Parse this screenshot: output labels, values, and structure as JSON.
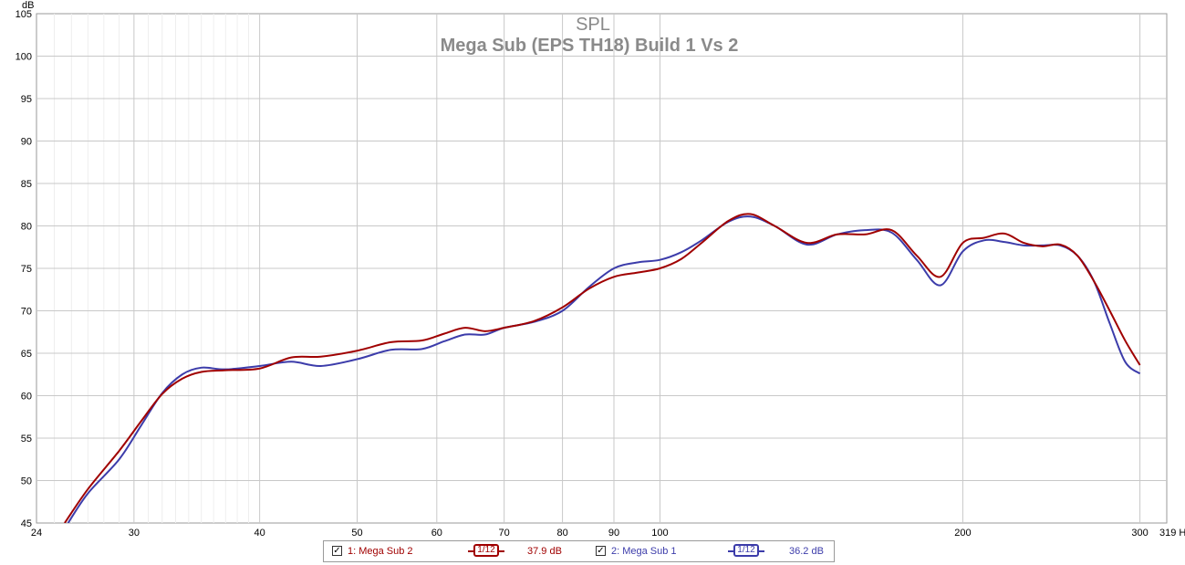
{
  "chart_data": {
    "type": "line",
    "title": "SPL",
    "subtitle": "Mega Sub (EPS TH18) Build 1 Vs 2",
    "ylabel": "dB",
    "xunit": "Hz",
    "xscale": "log",
    "xlim": [
      24,
      319
    ],
    "ylim": [
      45,
      105
    ],
    "grid": true,
    "xticks": [
      24,
      30,
      40,
      50,
      60,
      70,
      80,
      90,
      100,
      200,
      300,
      319
    ],
    "xtick_labels": [
      "24",
      "30",
      "40",
      "50",
      "60",
      "70",
      "80",
      "90",
      "100",
      "200",
      "300",
      "319 Hz"
    ],
    "yticks": [
      45,
      50,
      55,
      60,
      65,
      70,
      75,
      80,
      85,
      90,
      95,
      100,
      105
    ],
    "x_minor_gridlines": [
      25,
      26,
      27,
      28,
      29,
      31,
      32,
      33,
      34,
      35,
      36,
      37,
      38,
      39
    ],
    "series": [
      {
        "name": "1: Mega Sub 2",
        "color": "#a00000",
        "smoothing": "1/12",
        "value_label": "37.9 dB",
        "x": [
          25.6,
          27,
          29,
          30.5,
          32,
          33.5,
          35,
          37,
          40,
          43,
          46,
          50,
          54,
          58,
          61,
          64,
          67,
          70,
          75,
          80,
          85,
          90,
          95,
          100,
          105,
          110,
          117,
          123,
          130,
          140,
          150,
          160,
          170,
          180,
          190,
          200,
          210,
          220,
          230,
          240,
          250,
          260,
          270,
          280,
          290,
          300
        ],
        "y": [
          45,
          49,
          53.5,
          57,
          60.2,
          62,
          62.8,
          63,
          63.2,
          64.5,
          64.6,
          65.3,
          66.3,
          66.5,
          67.3,
          68,
          67.6,
          68,
          68.8,
          70.4,
          72.6,
          74,
          74.5,
          75,
          76.1,
          78,
          80.6,
          81.4,
          80,
          78,
          79,
          79,
          79.5,
          76.5,
          74,
          78,
          78.6,
          79.1,
          78,
          77.6,
          77.8,
          76.5,
          73.5,
          70,
          66.5,
          63.6
        ]
      },
      {
        "name": "2: Mega Sub 1",
        "color": "#3c3caa",
        "smoothing": "1/12",
        "value_label": "36.2 dB",
        "x": [
          25.8,
          27,
          29,
          30.5,
          32,
          33.5,
          35,
          37,
          40,
          43,
          46,
          50,
          54,
          58,
          61,
          64,
          67,
          70,
          75,
          80,
          85,
          90,
          95,
          100,
          105,
          110,
          117,
          123,
          130,
          140,
          150,
          160,
          170,
          180,
          190,
          200,
          210,
          220,
          230,
          240,
          250,
          260,
          270,
          280,
          290,
          300
        ],
        "y": [
          45,
          48.5,
          52.5,
          56.5,
          60.3,
          62.5,
          63.3,
          63.1,
          63.5,
          64,
          63.5,
          64.3,
          65.4,
          65.5,
          66.4,
          67.2,
          67.2,
          68,
          68.7,
          70,
          72.8,
          75,
          75.7,
          76,
          76.9,
          78.3,
          80.5,
          81.1,
          80,
          77.8,
          79,
          79.5,
          79.2,
          76,
          73,
          77,
          78.3,
          78.1,
          77.7,
          77.7,
          77.7,
          76.5,
          73.5,
          68.5,
          64,
          62.6
        ]
      }
    ]
  },
  "legend": {
    "checkmark": "✓",
    "smoothing_label": "1/12"
  }
}
